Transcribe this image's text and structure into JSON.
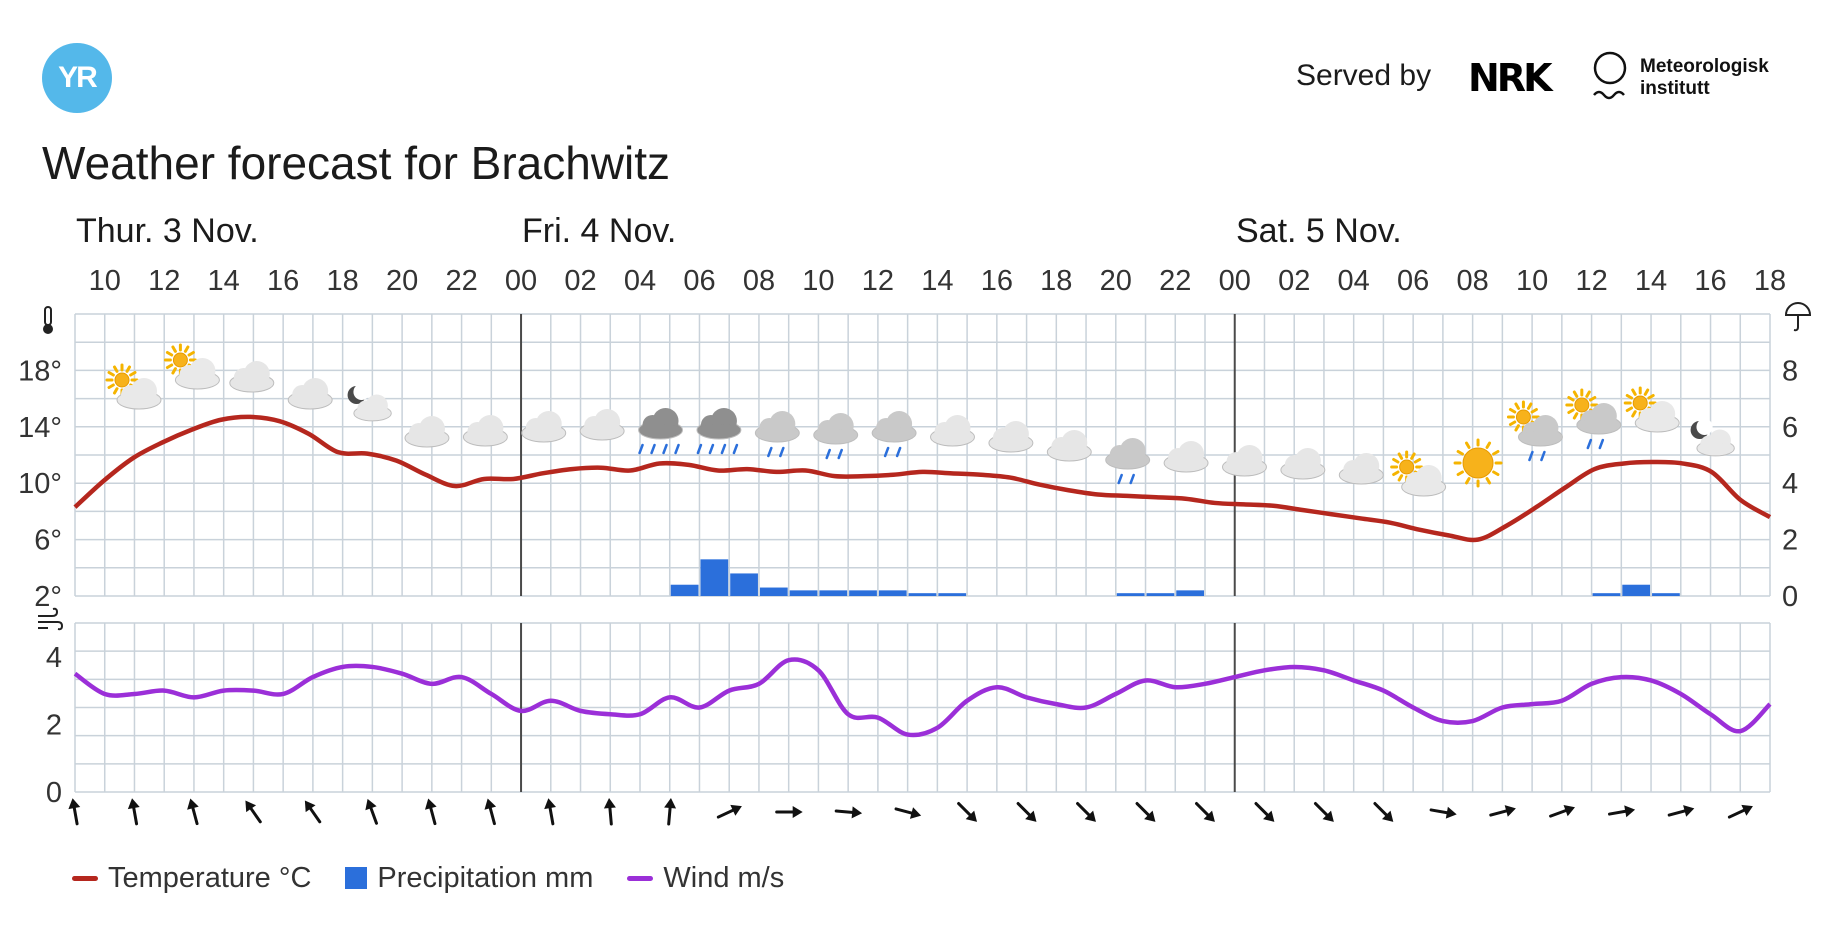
{
  "header": {
    "logo_text": "YR",
    "served_by": "Served by",
    "nrk_text": "NRK",
    "met_line1": "Meteorologisk",
    "met_line2": "institutt"
  },
  "title": "Weather forecast for Brachwitz",
  "legend": {
    "temperature": "Temperature °C",
    "precipitation": "Precipitation mm",
    "wind": "Wind m/s"
  },
  "colors": {
    "temperature": "#b5271e",
    "precipitation": "#2b6fdb",
    "wind": "#9b2fd8",
    "logo": "#54b8ea",
    "grid": "#c9d2da"
  },
  "chart_data": {
    "type": "line",
    "days": [
      {
        "label": "Thur. 3 Nov."
      },
      {
        "label": "Fri. 4 Nov."
      },
      {
        "label": "Sat. 5 Nov."
      }
    ],
    "hour_ticks": [
      "10",
      "12",
      "14",
      "16",
      "18",
      "20",
      "22",
      "00",
      "02",
      "04",
      "06",
      "08",
      "10",
      "12",
      "14",
      "16",
      "18",
      "20",
      "22",
      "00",
      "02",
      "04",
      "06",
      "08",
      "10",
      "12",
      "14",
      "16",
      "18"
    ],
    "temperature_ticks": [
      "18°",
      "14°",
      "10°",
      "6°",
      "2°"
    ],
    "precipitation_ticks": [
      "8",
      "6",
      "4",
      "2",
      "0"
    ],
    "wind_ticks": [
      "4",
      "2",
      "0"
    ],
    "temperature_range": [
      2,
      22
    ],
    "precipitation_range": [
      0,
      10
    ],
    "wind_range": [
      0,
      5
    ],
    "temperature": [
      8.3,
      10.2,
      11.8,
      12.9,
      13.8,
      14.5,
      14.7,
      14.4,
      13.5,
      12.2,
      12.1,
      11.6,
      10.6,
      9.8,
      10.3,
      10.3,
      10.7,
      11.0,
      11.1,
      10.9,
      11.4,
      11.3,
      10.9,
      11.0,
      10.8,
      10.9,
      10.5,
      10.5,
      10.6,
      10.8,
      10.7,
      10.6,
      10.4,
      9.9,
      9.5,
      9.2,
      9.1,
      9.0,
      8.9,
      8.6,
      8.5,
      8.4,
      8.1,
      7.8,
      7.5,
      7.2,
      6.7,
      6.3,
      6.0,
      7.0,
      8.3,
      9.7,
      11.0,
      11.4,
      11.5,
      11.4,
      10.8,
      8.8,
      7.6
    ],
    "precipitation": [
      0,
      0,
      0,
      0,
      0,
      0,
      0,
      0,
      0,
      0,
      0,
      0,
      0,
      0,
      0,
      0,
      0,
      0,
      0,
      0,
      0.4,
      1.3,
      0.8,
      0.3,
      0.2,
      0.2,
      0.2,
      0.2,
      0.1,
      0.1,
      0,
      0,
      0,
      0,
      0,
      0.1,
      0.1,
      0.2,
      0,
      0,
      0,
      0,
      0,
      0,
      0,
      0,
      0,
      0,
      0,
      0,
      0,
      0.1,
      0.4,
      0.1,
      0,
      0,
      0,
      0
    ],
    "wind": [
      3.5,
      2.9,
      2.9,
      3.0,
      2.8,
      3.0,
      3.0,
      2.9,
      3.4,
      3.7,
      3.7,
      3.5,
      3.2,
      3.4,
      2.9,
      2.4,
      2.7,
      2.4,
      2.3,
      2.3,
      2.8,
      2.5,
      3.0,
      3.2,
      3.9,
      3.6,
      2.3,
      2.2,
      1.7,
      1.9,
      2.7,
      3.1,
      2.8,
      2.6,
      2.5,
      2.9,
      3.3,
      3.1,
      3.2,
      3.4,
      3.6,
      3.7,
      3.6,
      3.3,
      3.0,
      2.5,
      2.1,
      2.1,
      2.5,
      2.6,
      2.7,
      3.2,
      3.4,
      3.3,
      2.9,
      2.3,
      1.8,
      2.6
    ],
    "wind_direction_deg": [
      -10,
      -10,
      -15,
      -35,
      -35,
      -20,
      -15,
      -15,
      -10,
      -5,
      5,
      65,
      90,
      95,
      105,
      135,
      135,
      135,
      135,
      135,
      135,
      135,
      135,
      100,
      75,
      70,
      80,
      75,
      65
    ],
    "weather_symbols": [
      "partly-cloudy-day",
      "partly-cloudy-day",
      "cloudy",
      "cloudy",
      "partly-cloudy-night",
      "cloudy",
      "cloudy",
      "cloudy",
      "cloudy",
      "heavy-rain",
      "heavy-rain",
      "light-rain",
      "light-rain",
      "light-rain",
      "cloudy",
      "cloudy",
      "cloudy",
      "light-rain",
      "cloudy",
      "cloudy",
      "cloudy",
      "cloudy",
      "partly-cloudy-day",
      "clear-sky",
      "rain-showers",
      "rain-showers",
      "partly-cloudy-day",
      "partly-cloudy-night"
    ]
  }
}
